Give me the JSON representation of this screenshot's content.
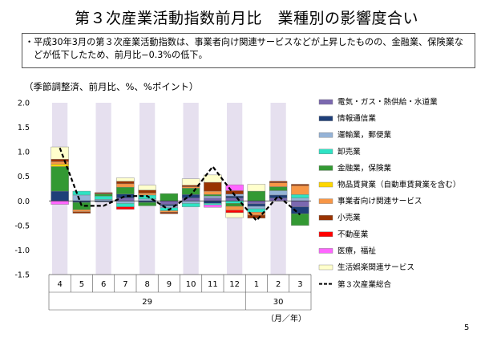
{
  "title": "第３次産業活動指数前月比　業種別の影響度合い",
  "summary": {
    "bullet": "・",
    "text": "平成30年3月の第３次産業活動指数は、事業者向け関連サービスなどが上昇したものの、金融業、保険業などが低下したため、前月比−0.3%の低下。"
  },
  "unit_label": "（季節調整済、前月比、%、%ポイント）",
  "page_number": "5",
  "chart_data": {
    "type": "bar",
    "stacked": true,
    "title": "",
    "xlabel": "（月／年）",
    "ylabel": "",
    "ylim": [
      -1.5,
      2.0
    ],
    "yticks": [
      "2.0",
      "1.5",
      "1.0",
      "0.5",
      "0.0",
      "-0.5",
      "-1.0",
      "-1.5"
    ],
    "categories": [
      "4",
      "5",
      "6",
      "7",
      "8",
      "9",
      "10",
      "11",
      "12",
      "1",
      "2",
      "3"
    ],
    "year_labels": [
      {
        "label": "29",
        "span": [
          0,
          8
        ]
      },
      {
        "label": "30",
        "span": [
          9,
          11
        ]
      }
    ],
    "shaded_categories": [
      0,
      2,
      4,
      6,
      8,
      10
    ],
    "series": [
      {
        "name": "電気・ガス・熱供給・水道業",
        "color": "#7b68b0",
        "values": [
          0.0,
          0.0,
          0.0,
          0.06,
          0.0,
          -0.07,
          0.06,
          0.06,
          0.06,
          -0.06,
          0.06,
          -0.12
        ]
      },
      {
        "name": "情報通信業",
        "color": "#1f3f79",
        "values": [
          0.2,
          -0.03,
          -0.02,
          0.08,
          -0.03,
          -0.03,
          0.07,
          -0.05,
          0.04,
          -0.05,
          0.06,
          -0.14
        ]
      },
      {
        "name": "運輸業，郵便業",
        "color": "#95b3d7",
        "values": [
          0.0,
          0.12,
          0.03,
          -0.05,
          0.04,
          -0.04,
          -0.05,
          0.04,
          0.04,
          -0.05,
          0.09,
          0.06
        ]
      },
      {
        "name": "卸売業",
        "color": "#2ee3c4",
        "values": [
          0.0,
          0.08,
          0.07,
          -0.07,
          0.08,
          -0.06,
          -0.07,
          -0.03,
          -0.05,
          -0.07,
          0.0,
          0.07
        ]
      },
      {
        "name": "金融業，保険業",
        "color": "#339933",
        "values": [
          0.5,
          -0.15,
          0.04,
          0.14,
          -0.07,
          0.15,
          0.13,
          0.03,
          -0.06,
          0.2,
          0.08,
          -0.24
        ]
      },
      {
        "name": "物品賃貸業（自動車賃貸業を含む）",
        "color": "#ffd700",
        "values": [
          0.05,
          0.0,
          0.0,
          0.0,
          0.0,
          0.0,
          0.0,
          0.0,
          0.0,
          0.0,
          0.0,
          0.0
        ]
      },
      {
        "name": "事業者向け関連サービス",
        "color": "#f79646",
        "values": [
          0.05,
          -0.04,
          0.01,
          0.07,
          0.04,
          -0.03,
          0.03,
          0.07,
          -0.08,
          -0.06,
          0.08,
          0.18
        ]
      },
      {
        "name": "小売業",
        "color": "#993300",
        "values": [
          0.05,
          -0.03,
          0.02,
          0.05,
          0.06,
          -0.03,
          0.03,
          0.18,
          0.07,
          -0.06,
          0.03,
          0.03
        ]
      },
      {
        "name": "不動産業",
        "color": "#ff0000",
        "values": [
          0.0,
          0.0,
          0.0,
          -0.05,
          0.0,
          0.0,
          0.0,
          0.0,
          -0.05,
          0.0,
          0.0,
          0.0
        ]
      },
      {
        "name": "医療，福祉",
        "color": "#ff66ff",
        "values": [
          -0.07,
          0.0,
          0.0,
          0.0,
          0.0,
          0.0,
          0.0,
          -0.05,
          0.12,
          0.0,
          0.0,
          0.0
        ]
      },
      {
        "name": "生活娯楽関連サービス",
        "color": "#ffffcc",
        "values": [
          0.25,
          0.0,
          0.0,
          0.07,
          0.1,
          0.0,
          0.13,
          0.15,
          -0.1,
          0.14,
          0.0,
          0.0
        ]
      }
    ],
    "total_series": {
      "name": "第３次産業総合",
      "color": "#000000",
      "values": [
        1.08,
        -0.1,
        -0.1,
        0.1,
        0.1,
        -0.18,
        0.12,
        0.7,
        0.12,
        -0.4,
        0.1,
        -0.28
      ]
    }
  }
}
